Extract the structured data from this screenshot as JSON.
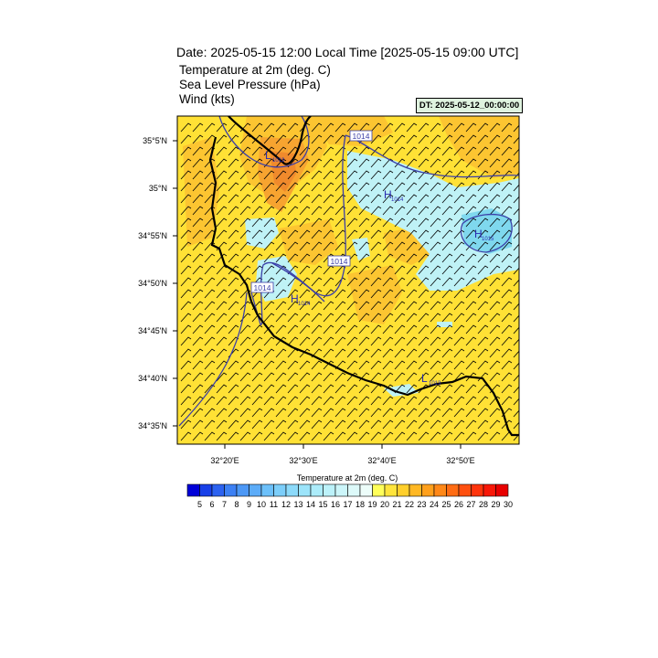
{
  "header": {
    "title": "Date: 2025-05-15  12:00 Local Time [2025-05-15  09:00 UTC]",
    "lines": [
      "Temperature at 2m   (deg. C)",
      "Sea Level Pressure   (hPa)",
      "Wind   (kts)"
    ],
    "dt_badge": "DT: 2025-05-12_00:00:00"
  },
  "map": {
    "lat_labels": [
      "35°5'N",
      "35°N",
      "34°55'N",
      "34°50'N",
      "34°45'N",
      "34°40'N",
      "34°35'N"
    ],
    "lon_labels": [
      "32°20'E",
      "32°30'E",
      "32°40'E",
      "32°50'E"
    ],
    "isobar_labels": [
      "1014",
      "1014",
      "1014"
    ],
    "centers": [
      {
        "letter": "L",
        "value": "1013"
      },
      {
        "letter": "H",
        "value": "1014"
      },
      {
        "letter": "H",
        "value": "1015"
      },
      {
        "letter": "H",
        "value": "1014"
      },
      {
        "letter": "L",
        "value": "1013"
      }
    ],
    "colors": {
      "land_yellow": "#ffe135",
      "warm_light": "#fcc531",
      "warm_orange": "#f7a430",
      "warm_dark": "#f08a2c",
      "cool_cyan": "#bff2f6",
      "cool_blue": "#7fd8ee",
      "isobar": "#3b3fa8",
      "coast": "#000000"
    }
  },
  "colorbar": {
    "title": "Temperature at 2m  (deg. C)",
    "ticks": [
      "5",
      "6",
      "7",
      "8",
      "9",
      "10",
      "11",
      "12",
      "13",
      "14",
      "15",
      "16",
      "17",
      "18",
      "19",
      "20",
      "21",
      "22",
      "23",
      "24",
      "25",
      "26",
      "27",
      "28",
      "29",
      "30"
    ],
    "colors": [
      "#0000d8",
      "#1840e8",
      "#2c62f0",
      "#3c80f4",
      "#4c98f6",
      "#5cacf8",
      "#6cc0fa",
      "#7ccefa",
      "#8cdafa",
      "#9ce4fa",
      "#acecfa",
      "#bcf2fa",
      "#ccf6fa",
      "#ddfafa",
      "#edfdfa",
      "#ffff5a",
      "#ffe43c",
      "#ffcf2c",
      "#ffb824",
      "#ffa01c",
      "#ff8818",
      "#ff6c14",
      "#ff5010",
      "#ff340c",
      "#f81808",
      "#e80000"
    ]
  }
}
